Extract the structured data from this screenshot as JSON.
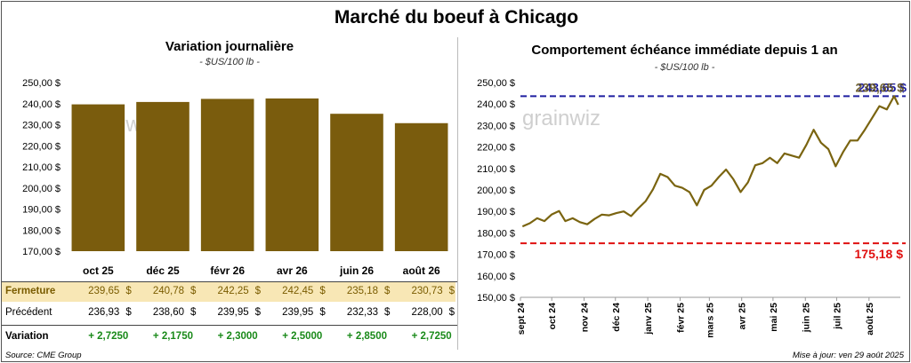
{
  "title": "Marché du boeuf à Chicago",
  "left": {
    "title": "Variation  journalière",
    "units": "- $US/100 lb -",
    "watermark": "grainwiz",
    "y_ticks": [
      "250,00 $",
      "240,00 $",
      "230,00 $",
      "220,00 $",
      "210,00 $",
      "200,00 $",
      "190,00 $",
      "180,00 $",
      "170,00 $"
    ],
    "table": {
      "fermeture_label": "Fermeture",
      "precedent_label": "Précédent",
      "variation_label": "Variation",
      "fermeture": [
        "239,65",
        "240,78",
        "242,25",
        "242,45",
        "235,18",
        "230,73"
      ],
      "precedent": [
        "236,93",
        "238,60",
        "239,95",
        "239,95",
        "232,33",
        "228,00"
      ],
      "variation": [
        "+ 2,7250",
        "+ 2,1750",
        "+ 2,3000",
        "+ 2,5000",
        "+ 2,8500",
        "+ 2,7250"
      ],
      "currency": "$"
    }
  },
  "right": {
    "title": "Comportement  échéance immédiate depuis 1 an",
    "units": "- $US/100 lb -",
    "watermark": "grainwiz",
    "y_ticks": [
      "250,00 $",
      "240,00 $",
      "230,00 $",
      "220,00 $",
      "210,00 $",
      "200,00 $",
      "190,00 $",
      "180,00 $",
      "170,00 $",
      "160,00 $",
      "150,00 $"
    ],
    "x_ticks": [
      "sept 24",
      "oct 24",
      "nov 24",
      "déc 24",
      "janv 25",
      "févr 25",
      "mars 25",
      "avr 25",
      "mai 25",
      "juin 25",
      "juil 25",
      "août 25"
    ],
    "max_label": "243,65 $",
    "min_label": "175,18 $",
    "last_label": "239,65 $"
  },
  "footer": {
    "source": "Source: CME Group",
    "update": "Mise à jour: ven 29 août 2025"
  },
  "colors": {
    "bar": "#7a5c0d",
    "line": "#7a6410",
    "max_line": "#1f1fa0",
    "min_line": "#e01010",
    "fermeture_bg": "#f8e7b5",
    "variation": "#1a8a1a"
  },
  "chart_data": [
    {
      "type": "bar",
      "title": "Variation  journalière",
      "ylabel": "- $US/100 lb -",
      "categories": [
        "oct 25",
        "déc 25",
        "févr 26",
        "avr 26",
        "juin 26",
        "août 26"
      ],
      "values": [
        239.65,
        240.78,
        242.25,
        242.45,
        235.18,
        230.73
      ],
      "ylim": [
        170,
        250
      ],
      "grid": false
    },
    {
      "type": "line",
      "title": "Comportement  échéance immédiate depuis 1 an",
      "ylabel": "- $US/100 lb -",
      "ylim": [
        150,
        250
      ],
      "max_value": 243.65,
      "min_value": 175.18,
      "series": [
        {
          "x": [
            "2024-09-03",
            "2024-09-10",
            "2024-09-17",
            "2024-09-24",
            "2024-10-01",
            "2024-10-08",
            "2024-10-14",
            "2024-10-21",
            "2024-10-28",
            "2024-11-04",
            "2024-11-11",
            "2024-11-18",
            "2024-11-25",
            "2024-12-02",
            "2024-12-09",
            "2024-12-16",
            "2024-12-23",
            "2024-12-30",
            "2025-01-06",
            "2025-01-13",
            "2025-01-20",
            "2025-01-27",
            "2025-02-03",
            "2025-02-10",
            "2025-02-17",
            "2025-02-24",
            "2025-03-03",
            "2025-03-10",
            "2025-03-17",
            "2025-03-24",
            "2025-03-31",
            "2025-04-07",
            "2025-04-14",
            "2025-04-21",
            "2025-04-28",
            "2025-05-05",
            "2025-05-12",
            "2025-05-19",
            "2025-05-26",
            "2025-06-02",
            "2025-06-09",
            "2025-06-16",
            "2025-06-23",
            "2025-06-30",
            "2025-07-07",
            "2025-07-14",
            "2025-07-21",
            "2025-07-28",
            "2025-08-04",
            "2025-08-11",
            "2025-08-18",
            "2025-08-25",
            "2025-08-29"
          ],
          "values": [
            183.0,
            184.5,
            186.8,
            185.5,
            188.6,
            190.2,
            185.5,
            186.8,
            185.0,
            184.0,
            186.5,
            188.5,
            188.2,
            189.2,
            190.0,
            187.8,
            191.5,
            194.8,
            200.3,
            207.5,
            206.0,
            202.0,
            201.0,
            199.0,
            192.8,
            200.0,
            202.0,
            206.0,
            209.5,
            205.0,
            199.0,
            203.5,
            211.5,
            212.5,
            215.0,
            212.5,
            217.0,
            216.0,
            215.0,
            221.0,
            228.0,
            222.0,
            219.0,
            211.0,
            217.5,
            223.0,
            223.0,
            228.0,
            233.5,
            239.0,
            237.5,
            243.65,
            239.65
          ]
        }
      ]
    }
  ]
}
